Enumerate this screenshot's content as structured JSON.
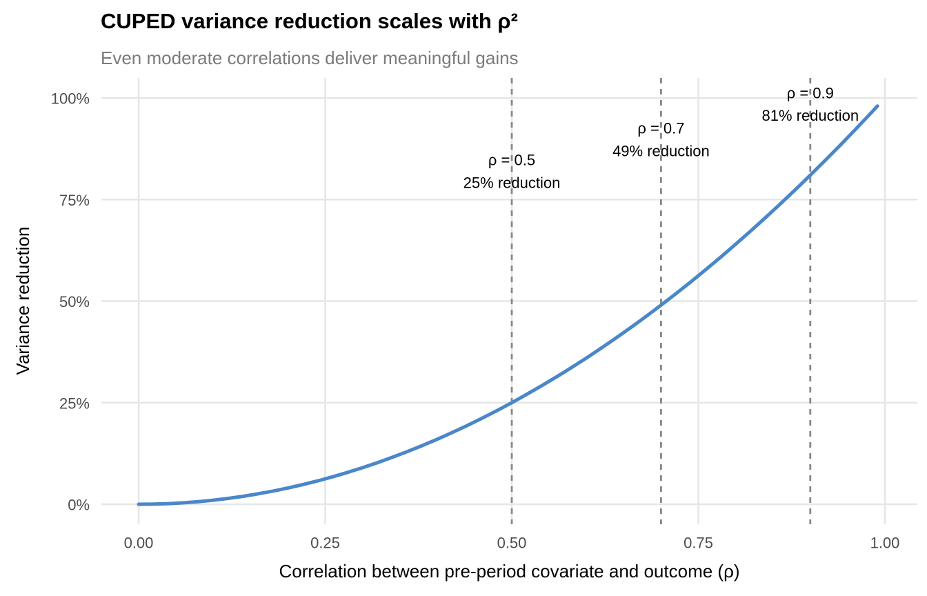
{
  "chart": {
    "title": "CUPED variance reduction scales with ρ²",
    "subtitle": "Even moderate correlations deliver meaningful gains"
  },
  "chart_data": {
    "type": "line",
    "title": "CUPED variance reduction scales with ρ²",
    "subtitle": "Even moderate correlations deliver meaningful gains",
    "xlabel": "Correlation between pre-period covariate and outcome (ρ)",
    "ylabel": "Variance reduction",
    "xlim": [
      0,
      1
    ],
    "ylim": [
      0,
      1
    ],
    "grid": true,
    "legend": false,
    "x_ticks": {
      "values": [
        0,
        0.25,
        0.5,
        0.75,
        1
      ],
      "labels": [
        "0.00",
        "0.25",
        "0.50",
        "0.75",
        "1.00"
      ]
    },
    "y_ticks": {
      "values": [
        0,
        0.25,
        0.5,
        0.75,
        1
      ],
      "labels": [
        "0%",
        "25%",
        "50%",
        "75%",
        "100%"
      ]
    },
    "series": [
      {
        "name": "variance-reduction-curve",
        "formula": "variance reduction = ρ²",
        "color": "#4a87c9",
        "points": [
          [
            0,
            0
          ],
          [
            0.02,
            0.0004
          ],
          [
            0.04,
            0.0016
          ],
          [
            0.06,
            0.0036
          ],
          [
            0.08,
            0.0064
          ],
          [
            0.1,
            0.01
          ],
          [
            0.12,
            0.0144
          ],
          [
            0.14,
            0.0196
          ],
          [
            0.16,
            0.0256
          ],
          [
            0.18,
            0.0324
          ],
          [
            0.2,
            0.04
          ],
          [
            0.22,
            0.0484
          ],
          [
            0.24,
            0.0576
          ],
          [
            0.26,
            0.0676
          ],
          [
            0.28,
            0.0784
          ],
          [
            0.3,
            0.09
          ],
          [
            0.32,
            0.1024
          ],
          [
            0.34,
            0.1156
          ],
          [
            0.36,
            0.1296
          ],
          [
            0.38,
            0.1444
          ],
          [
            0.4,
            0.16
          ],
          [
            0.42,
            0.1764
          ],
          [
            0.44,
            0.1936
          ],
          [
            0.46,
            0.2116
          ],
          [
            0.48,
            0.2304
          ],
          [
            0.5,
            0.25
          ],
          [
            0.52,
            0.2704
          ],
          [
            0.54,
            0.2916
          ],
          [
            0.56,
            0.3136
          ],
          [
            0.58,
            0.3364
          ],
          [
            0.6,
            0.36
          ],
          [
            0.62,
            0.3844
          ],
          [
            0.64,
            0.4096
          ],
          [
            0.66,
            0.4356
          ],
          [
            0.68,
            0.4624
          ],
          [
            0.7,
            0.49
          ],
          [
            0.72,
            0.5184
          ],
          [
            0.74,
            0.5476
          ],
          [
            0.76,
            0.5776
          ],
          [
            0.78,
            0.6084
          ],
          [
            0.8,
            0.64
          ],
          [
            0.82,
            0.6724
          ],
          [
            0.84,
            0.7056
          ],
          [
            0.86,
            0.7396
          ],
          [
            0.88,
            0.7744
          ],
          [
            0.9,
            0.81
          ],
          [
            0.92,
            0.8464
          ],
          [
            0.94,
            0.8836
          ],
          [
            0.96,
            0.9216
          ],
          [
            0.98,
            0.9604
          ],
          [
            0.99,
            0.9801
          ]
        ]
      }
    ],
    "reference_lines": [
      {
        "x": 0.5,
        "style": "dashed",
        "labels": [
          "ρ = 0.5",
          "25% reduction"
        ],
        "label_y": [
          0.847,
          0.791
        ]
      },
      {
        "x": 0.7,
        "style": "dashed",
        "labels": [
          "ρ = 0.7",
          "49% reduction"
        ],
        "label_y": [
          0.925,
          0.869
        ]
      },
      {
        "x": 0.9,
        "style": "dashed",
        "labels": [
          "ρ = 0.9",
          "81% reduction"
        ],
        "label_y": [
          1.012,
          0.957
        ]
      }
    ],
    "colors": {
      "line": "#4a87c9",
      "grid": "#e6e6e6",
      "reference_line": "#878787",
      "tick_label": "#4d4d4d",
      "subtitle": "#7b7b7b",
      "title": "#000000",
      "annotation": "#000000",
      "background": "#ffffff"
    }
  }
}
